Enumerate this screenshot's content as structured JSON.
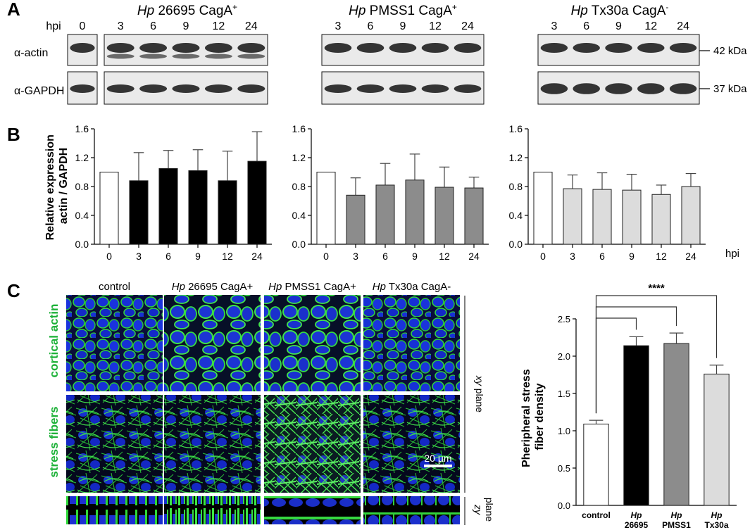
{
  "panel_labels": [
    "A",
    "B",
    "C"
  ],
  "blots": {
    "hpi_label": "hpi",
    "groups": [
      {
        "prefix": "Hp",
        "name": " 26695 CagA",
        "sup": "+"
      },
      {
        "prefix": "Hp",
        "name": " PMSS1 CagA",
        "sup": "+"
      },
      {
        "prefix": "Hp",
        "name": " Tx30a CagA",
        "sup": "-"
      }
    ],
    "lanes_control": [
      "0"
    ],
    "lanes_time": [
      "3",
      "6",
      "9",
      "12",
      "24"
    ],
    "rows": [
      "α-actin",
      "α-GAPDH"
    ],
    "sizes": [
      "42 kDa",
      "37 kDa"
    ]
  },
  "chart_data": [
    {
      "type": "bar",
      "ylabel_lines": [
        "Relative expression",
        "actin / GAPDH"
      ],
      "categories": [
        "0",
        "3",
        "6",
        "9",
        "12",
        "24"
      ],
      "values": [
        1.0,
        0.88,
        1.05,
        1.02,
        0.88,
        1.15
      ],
      "errors": [
        0.0,
        0.39,
        0.25,
        0.29,
        0.41,
        0.41
      ],
      "ylim": [
        0,
        1.6
      ],
      "yticks": [
        "0.0",
        "0.4",
        "0.8",
        "1.2",
        "1.6"
      ],
      "colors": [
        "#ffffff",
        "#000000",
        "#000000",
        "#000000",
        "#000000",
        "#000000"
      ]
    },
    {
      "type": "bar",
      "categories": [
        "0",
        "3",
        "6",
        "9",
        "12",
        "24"
      ],
      "values": [
        1.0,
        0.68,
        0.82,
        0.89,
        0.79,
        0.78
      ],
      "errors": [
        0.0,
        0.24,
        0.3,
        0.36,
        0.28,
        0.15
      ],
      "ylim": [
        0,
        1.6
      ],
      "yticks": [
        "0.0",
        "0.4",
        "0.8",
        "1.2",
        "1.6"
      ],
      "colors": [
        "#ffffff",
        "#8c8c8c",
        "#8c8c8c",
        "#8c8c8c",
        "#8c8c8c",
        "#8c8c8c"
      ]
    },
    {
      "type": "bar",
      "xlabel": "hpi",
      "categories": [
        "0",
        "3",
        "6",
        "9",
        "12",
        "24"
      ],
      "values": [
        1.0,
        0.77,
        0.76,
        0.75,
        0.69,
        0.8
      ],
      "errors": [
        0.0,
        0.19,
        0.23,
        0.22,
        0.13,
        0.18
      ],
      "ylim": [
        0,
        1.6
      ],
      "yticks": [
        "0.0",
        "0.4",
        "0.8",
        "1.2",
        "1.6"
      ],
      "colors": [
        "#ffffff",
        "#dcdcdc",
        "#dcdcdc",
        "#dcdcdc",
        "#dcdcdc",
        "#dcdcdc"
      ]
    },
    {
      "type": "bar",
      "ylabel_lines": [
        "Pheripheral stress",
        "fiber density"
      ],
      "categories": [
        {
          "top": "control",
          "bottom": ""
        },
        {
          "top": "Hp",
          "bottom": "26695"
        },
        {
          "top": "Hp",
          "bottom": "PMSS1"
        },
        {
          "top": "Hp",
          "bottom": "Tx30a"
        }
      ],
      "values": [
        1.09,
        2.14,
        2.17,
        1.76
      ],
      "errors": [
        0.05,
        0.12,
        0.14,
        0.12
      ],
      "ylim": [
        0,
        2.5
      ],
      "yticks": [
        "0.0",
        "0.5",
        "1.0",
        "1.5",
        "2.0",
        "2.5"
      ],
      "colors": [
        "#ffffff",
        "#000000",
        "#8c8c8c",
        "#dcdcdc"
      ],
      "significance": "****"
    }
  ],
  "micrographs": {
    "columns": [
      {
        "prefix": "",
        "name": "control"
      },
      {
        "prefix": "Hp",
        "name": " 26695 CagA+"
      },
      {
        "prefix": "Hp",
        "name": " PMSS1 CagA+"
      },
      {
        "prefix": "Hp",
        "name": " Tx30a CagA-"
      }
    ],
    "rows": [
      "cortical actin",
      "stress fibers"
    ],
    "plane_xy": {
      "italic": "xy",
      "rest": " plane"
    },
    "plane_zy": {
      "italic": "zy",
      "rest": "plane"
    },
    "scale_bar": "20 µm",
    "colors": {
      "nuclei": "#1a2fd6",
      "actin": "#22c82e",
      "label_green": "#1fb23a"
    }
  }
}
